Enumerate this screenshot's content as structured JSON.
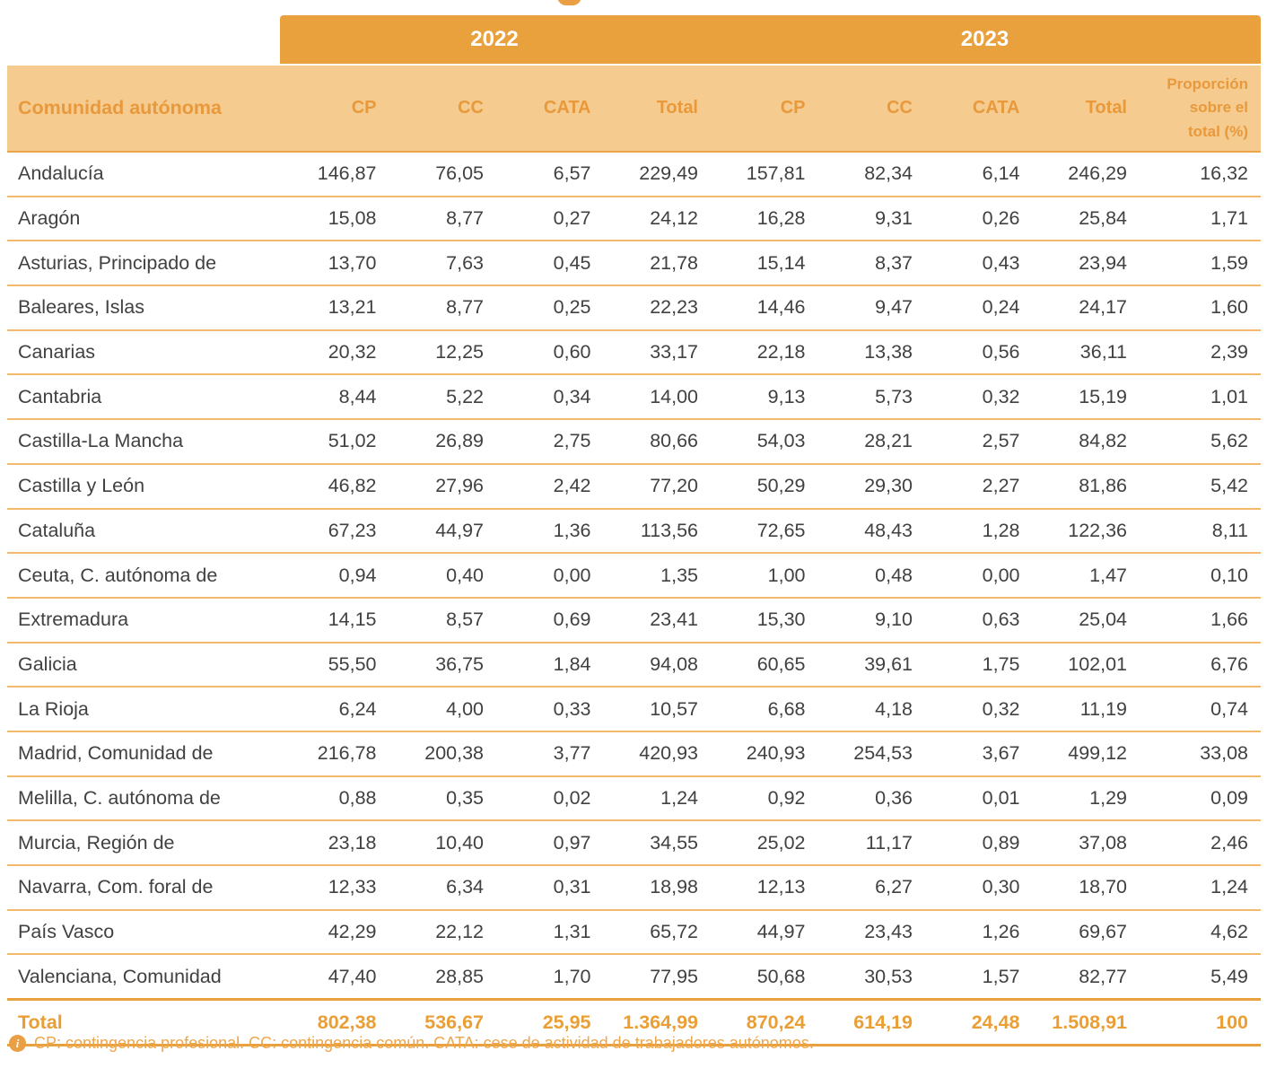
{
  "table": {
    "year_groups": [
      {
        "label": "2022",
        "columns": 4
      },
      {
        "label": "2023",
        "columns": 5
      }
    ],
    "columns": [
      "Comunidad autónoma",
      "CP",
      "CC",
      "CATA",
      "Total",
      "CP",
      "CC",
      "CATA",
      "Total",
      "Proporción\nsobre el\ntotal (%)"
    ],
    "rows": [
      {
        "name": "Andalucía",
        "values": [
          "146,87",
          "76,05",
          "6,57",
          "229,49",
          "157,81",
          "82,34",
          "6,14",
          "246,29",
          "16,32"
        ]
      },
      {
        "name": "Aragón",
        "values": [
          "15,08",
          "8,77",
          "0,27",
          "24,12",
          "16,28",
          "9,31",
          "0,26",
          "25,84",
          "1,71"
        ]
      },
      {
        "name": "Asturias, Principado de",
        "values": [
          "13,70",
          "7,63",
          "0,45",
          "21,78",
          "15,14",
          "8,37",
          "0,43",
          "23,94",
          "1,59"
        ]
      },
      {
        "name": "Baleares, Islas",
        "values": [
          "13,21",
          "8,77",
          "0,25",
          "22,23",
          "14,46",
          "9,47",
          "0,24",
          "24,17",
          "1,60"
        ]
      },
      {
        "name": "Canarias",
        "values": [
          "20,32",
          "12,25",
          "0,60",
          "33,17",
          "22,18",
          "13,38",
          "0,56",
          "36,11",
          "2,39"
        ]
      },
      {
        "name": "Cantabria",
        "values": [
          "8,44",
          "5,22",
          "0,34",
          "14,00",
          "9,13",
          "5,73",
          "0,32",
          "15,19",
          "1,01"
        ]
      },
      {
        "name": "Castilla-La Mancha",
        "values": [
          "51,02",
          "26,89",
          "2,75",
          "80,66",
          "54,03",
          "28,21",
          "2,57",
          "84,82",
          "5,62"
        ]
      },
      {
        "name": "Castilla y León",
        "values": [
          "46,82",
          "27,96",
          "2,42",
          "77,20",
          "50,29",
          "29,30",
          "2,27",
          "81,86",
          "5,42"
        ]
      },
      {
        "name": "Cataluña",
        "values": [
          "67,23",
          "44,97",
          "1,36",
          "113,56",
          "72,65",
          "48,43",
          "1,28",
          "122,36",
          "8,11"
        ]
      },
      {
        "name": "Ceuta, C. autónoma de",
        "values": [
          "0,94",
          "0,40",
          "0,00",
          "1,35",
          "1,00",
          "0,48",
          "0,00",
          "1,47",
          "0,10"
        ]
      },
      {
        "name": "Extremadura",
        "values": [
          "14,15",
          "8,57",
          "0,69",
          "23,41",
          "15,30",
          "9,10",
          "0,63",
          "25,04",
          "1,66"
        ]
      },
      {
        "name": "Galicia",
        "values": [
          "55,50",
          "36,75",
          "1,84",
          "94,08",
          "60,65",
          "39,61",
          "1,75",
          "102,01",
          "6,76"
        ]
      },
      {
        "name": "La Rioja",
        "values": [
          "6,24",
          "4,00",
          "0,33",
          "10,57",
          "6,68",
          "4,18",
          "0,32",
          "11,19",
          "0,74"
        ]
      },
      {
        "name": "Madrid, Comunidad de",
        "values": [
          "216,78",
          "200,38",
          "3,77",
          "420,93",
          "240,93",
          "254,53",
          "3,67",
          "499,12",
          "33,08"
        ]
      },
      {
        "name": "Melilla, C. autónoma de",
        "values": [
          "0,88",
          "0,35",
          "0,02",
          "1,24",
          "0,92",
          "0,36",
          "0,01",
          "1,29",
          "0,09"
        ]
      },
      {
        "name": "Murcia, Región de",
        "values": [
          "23,18",
          "10,40",
          "0,97",
          "34,55",
          "25,02",
          "11,17",
          "0,89",
          "37,08",
          "2,46"
        ]
      },
      {
        "name": "Navarra, Com. foral de",
        "values": [
          "12,33",
          "6,34",
          "0,31",
          "18,98",
          "12,13",
          "6,27",
          "0,30",
          "18,70",
          "1,24"
        ]
      },
      {
        "name": "País Vasco",
        "values": [
          "42,29",
          "22,12",
          "1,31",
          "65,72",
          "44,97",
          "23,43",
          "1,26",
          "69,67",
          "4,62"
        ]
      },
      {
        "name": "Valenciana, Comunidad",
        "values": [
          "47,40",
          "28,85",
          "1,70",
          "77,95",
          "50,68",
          "30,53",
          "1,57",
          "82,77",
          "5,49"
        ]
      }
    ],
    "total": {
      "label": "Total",
      "values": [
        "802,38",
        "536,67",
        "25,95",
        "1.364,99",
        "870,24",
        "614,19",
        "24,48",
        "1.508,91",
        "100"
      ]
    }
  },
  "footer": {
    "note": "CP: contingencia profesional. CC: contingencia común. CATA: cese de actividad de trabajadores autónomos."
  },
  "colors": {
    "band": "#E9A13E",
    "header_bg": "#F6CB8F",
    "header_text": "#E8993B",
    "body_text": "#414042",
    "row_separator": "#F3BA6E",
    "total_text": "#EA9E33",
    "footer_text": "#EDA64C"
  }
}
